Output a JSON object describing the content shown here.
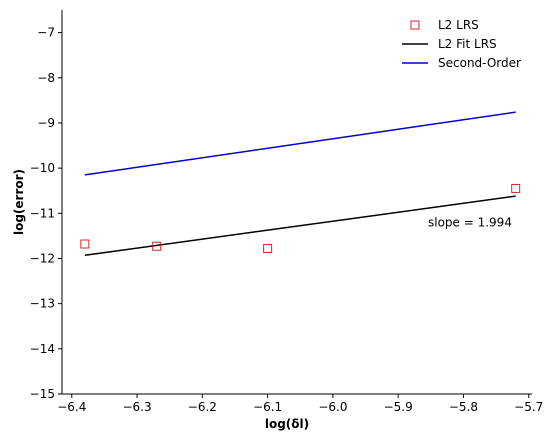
{
  "chart_data": {
    "type": "line",
    "xlabel": "log(δl)",
    "ylabel": "log(error)",
    "xlim": [
      -6.415,
      -5.695
    ],
    "ylim": [
      -15,
      -6.5
    ],
    "x_ticks": [
      -6.4,
      -6.3,
      -6.2,
      -6.1,
      -6.0,
      -5.9,
      -5.8,
      -5.7
    ],
    "x_tick_labels": [
      "−6.4",
      "−6.3",
      "−6.2",
      "−6.1",
      "−6.0",
      "−5.9",
      "−5.8",
      "−5.7"
    ],
    "y_ticks": [
      -15,
      -14,
      -13,
      -12,
      -11,
      -10,
      -9,
      -8,
      -7
    ],
    "y_tick_labels": [
      "−15",
      "−14",
      "−13",
      "−12",
      "−11",
      "−10",
      "−9",
      "−8",
      "−7"
    ],
    "grid": false,
    "legend_position": "top-right",
    "series": [
      {
        "name": "L2 LRS",
        "kind": "markers",
        "marker": "square",
        "color": "#d62728",
        "points": [
          [
            -6.38,
            -11.68
          ],
          [
            -6.27,
            -11.73
          ],
          [
            -6.1,
            -11.78
          ],
          [
            -5.72,
            -10.45
          ]
        ]
      },
      {
        "name": "L2 Fit LRS",
        "kind": "line",
        "color": "#000000",
        "points": [
          [
            -6.38,
            -11.93
          ],
          [
            -5.72,
            -10.62
          ]
        ]
      },
      {
        "name": "Second-Order",
        "kind": "line",
        "color": "#0000cc",
        "points": [
          [
            -6.38,
            -10.15
          ],
          [
            -5.72,
            -8.76
          ]
        ]
      }
    ],
    "annotations": [
      {
        "text": "slope = 1.994",
        "x": -5.79,
        "y": -11.2
      }
    ]
  }
}
